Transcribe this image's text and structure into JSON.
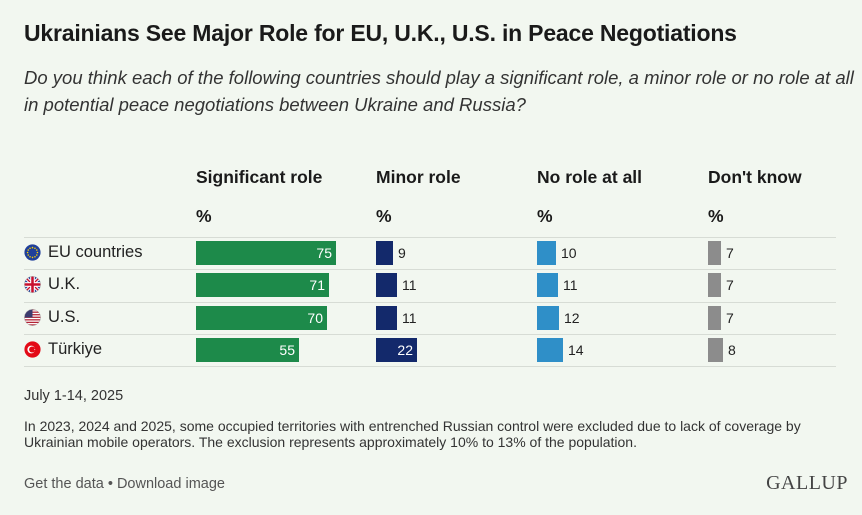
{
  "title": "Ukrainians See Major Role for EU, U.K., U.S. in Peace Negotiations",
  "subtitle": "Do you think each of the following countries should play a significant role, a minor role or no role at all in potential peace negotiations between Ukraine and Russia?",
  "chart_data": {
    "type": "bar",
    "categories": [
      "EU countries",
      "U.K.",
      "U.S.",
      "Türkiye"
    ],
    "series": [
      {
        "name": "Significant role",
        "unit": "%",
        "color": "#1d8a4a",
        "values": [
          75,
          71,
          70,
          55
        ]
      },
      {
        "name": "Minor role",
        "unit": "%",
        "color": "#13296b",
        "values": [
          9,
          11,
          11,
          22
        ]
      },
      {
        "name": "No role at all",
        "unit": "%",
        "color": "#2f8fc8",
        "values": [
          10,
          11,
          12,
          14
        ]
      },
      {
        "name": "Don't know",
        "unit": "%",
        "color": "#8c8c8c",
        "values": [
          7,
          7,
          7,
          8
        ]
      }
    ],
    "flag_icons": [
      "eu-flag-icon",
      "uk-flag-icon",
      "us-flag-icon",
      "turkey-flag-icon"
    ]
  },
  "notes": {
    "date": "July 1-14, 2025",
    "methodology": "In 2023, 2024 and 2025, some occupied territories with entrenched Russian control were excluded due to lack of coverage by Ukrainian mobile operators. The exclusion represents approximately 10% to 13% of the population."
  },
  "footer": {
    "get_data": "Get the data",
    "separator": " • ",
    "download": "Download image",
    "logo": "GALLUP"
  }
}
